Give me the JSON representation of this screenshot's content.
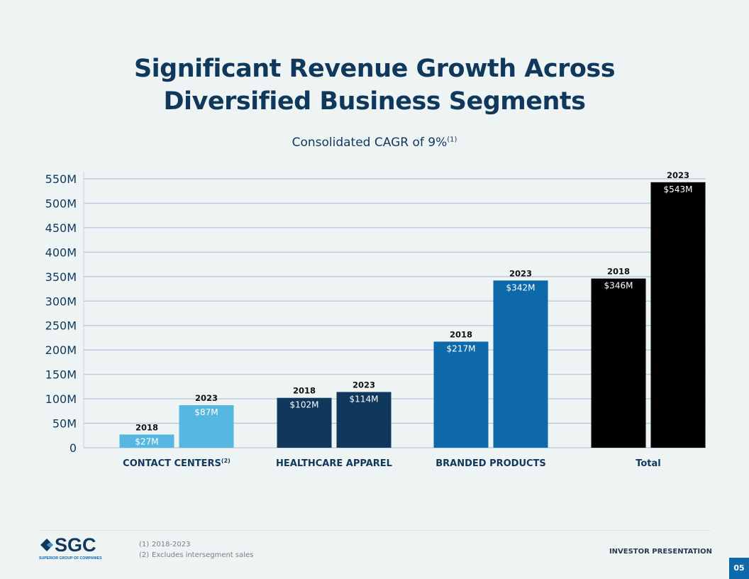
{
  "title_line1": "Significant Revenue Growth Across",
  "title_line2": "Diversified Business Segments",
  "logo": {
    "text": "SGC",
    "tagline": "SUPERIOR GROUP OF COMPANIES"
  },
  "footnotes": [
    {
      "mark": "(1)",
      "text": "2018-2023"
    },
    {
      "mark": "(2)",
      "text": "Excludes intersegment sales"
    }
  ],
  "footer_label": "INVESTOR PRESENTATION",
  "page_number": "05",
  "chart_data": {
    "type": "bar",
    "title": "Consolidated CAGR of 9%",
    "title_sup": "(1)",
    "categories": [
      "CONTACT CENTERS",
      "HEALTHCARE APPAREL",
      "BRANDED PRODUCTS",
      "Total"
    ],
    "category_sups": [
      "(2)",
      "",
      "",
      ""
    ],
    "series": [
      {
        "name": "2018",
        "values": [
          27,
          102,
          217,
          346
        ],
        "labels": [
          "$27M",
          "$102M",
          "$217M",
          "$346M"
        ]
      },
      {
        "name": "2023",
        "values": [
          87,
          114,
          342,
          543
        ],
        "labels": [
          "$87M",
          "$114M",
          "$342M",
          "$543M"
        ]
      }
    ],
    "colors": [
      "#56b7e1",
      "#10385c",
      "#0e69ab",
      "#000000"
    ],
    "yticks": [
      "0",
      "50M",
      "100M",
      "150M",
      "200M",
      "250M",
      "300M",
      "350M",
      "400M",
      "450M",
      "500M",
      "550M"
    ],
    "ylim": [
      0,
      550
    ],
    "grid": true,
    "legend": "none"
  }
}
